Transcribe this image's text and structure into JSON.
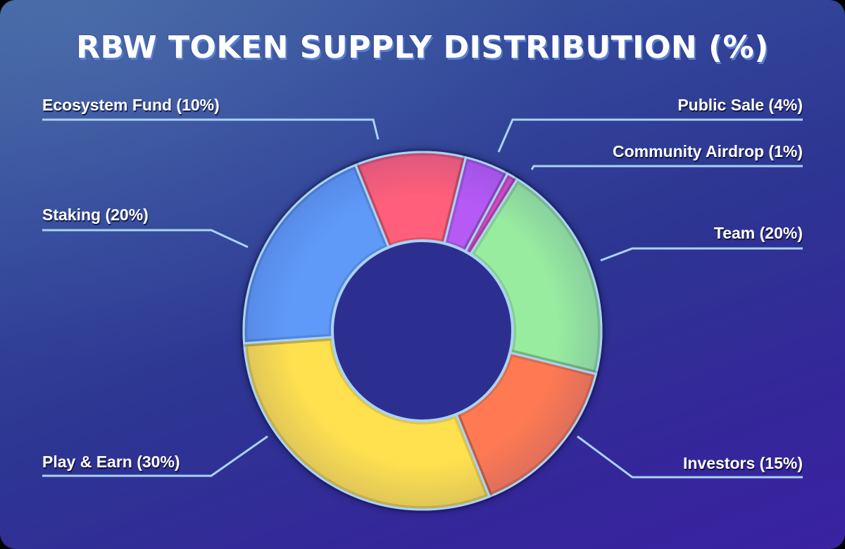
{
  "title": "RBW TOKEN SUPPLY DISTRIBUTION (%)",
  "theme": {
    "leader_line_color": "#a9d3f5",
    "slice_border_color": "#a9d3f5",
    "hole_color": "#2c2f8f"
  },
  "labels": {
    "ecosystem": "Ecosystem Fund (10%)",
    "public_sale": "Public Sale (4%)",
    "airdrop": "Community Airdrop (1%)",
    "staking": "Staking (20%)",
    "team": "Team (20%)",
    "play_earn": "Play & Earn (30%)",
    "investors": "Investors (15%)"
  },
  "chart_data": {
    "type": "pie",
    "subtype": "donut",
    "title": "RBW TOKEN SUPPLY DISTRIBUTION (%)",
    "unit": "%",
    "categories": [
      "Ecosystem Fund",
      "Public Sale",
      "Community Airdrop",
      "Team",
      "Investors",
      "Play & Earn",
      "Staking"
    ],
    "values": [
      10,
      4,
      1,
      20,
      15,
      30,
      20
    ],
    "colors": [
      "#ff5f7a",
      "#b65af5",
      "#d94fc9",
      "#98ecA0",
      "#ff7a52",
      "#ffe04f",
      "#5f9af8"
    ],
    "start_angle_deg": -22,
    "direction": "clockwise",
    "legend": "none (leader-line labels)",
    "center": [
      600,
      470
    ],
    "outer_radius": 254,
    "inner_radius": 128
  }
}
